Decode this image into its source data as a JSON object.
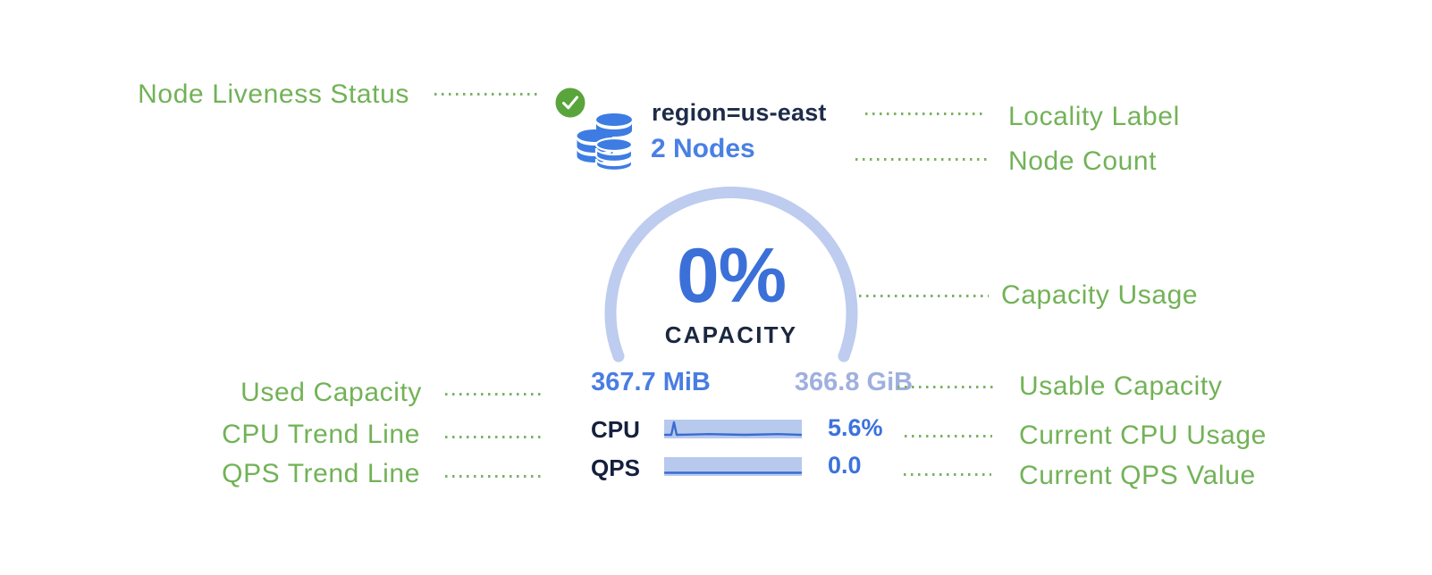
{
  "colors": {
    "label_green": "#72b257",
    "dot_green": "#7cb263",
    "check_green": "#5aa43c",
    "db_blue": "#3d7ce2",
    "navy": "#1e2c49",
    "node_blue": "#4a80e4",
    "pct_blue": "#3b70d8",
    "used_blue": "#4a7de2",
    "usable_blue": "#9fb0de",
    "arc_blue": "#bdccef",
    "spark_bg": "#b7c9ed",
    "spark_line": "#3a6cd0",
    "value_blue": "#3b72dc"
  },
  "node_card": {
    "liveness_icon": "check-circle",
    "node_type_icon": "database-stack",
    "locality": "region=us-east",
    "node_count": "2 Nodes",
    "capacity_percent": "0%",
    "capacity_label": "CAPACITY",
    "used_capacity": "367.7 MiB",
    "usable_capacity": "366.8 GiB",
    "cpu": {
      "label": "CPU",
      "value": "5.6%",
      "sparkline_points": [
        [
          1,
          17
        ],
        [
          8,
          17
        ],
        [
          11,
          3
        ],
        [
          14,
          17
        ],
        [
          50,
          16.2
        ],
        [
          90,
          17
        ],
        [
          128,
          16.2
        ],
        [
          153,
          17
        ]
      ]
    },
    "qps": {
      "label": "QPS",
      "value": "0.0",
      "sparkline_points": [
        [
          1,
          17.5
        ],
        [
          153,
          17.5
        ]
      ]
    }
  },
  "annotations": {
    "left": [
      {
        "label": "Node Liveness Status"
      },
      {
        "label": "Used Capacity"
      },
      {
        "label": "CPU Trend Line"
      },
      {
        "label": "QPS Trend Line"
      }
    ],
    "right": [
      {
        "label": "Locality Label"
      },
      {
        "label": "Node Count"
      },
      {
        "label": "Capacity Usage"
      },
      {
        "label": "Usable Capacity"
      },
      {
        "label": "Current CPU Usage"
      },
      {
        "label": "Current QPS Value"
      }
    ]
  }
}
